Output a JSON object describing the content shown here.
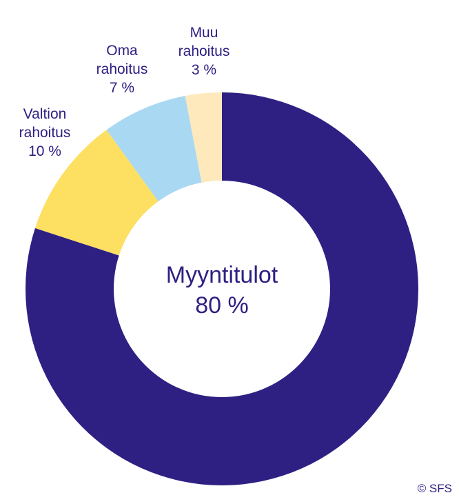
{
  "chart_data": {
    "type": "pie",
    "style": "donut",
    "slices": [
      {
        "label_lines": [
          "Myyntitulot",
          "80 %"
        ],
        "value": 80,
        "color": "#2e2083"
      },
      {
        "label_lines": [
          "Valtion",
          "rahoitus",
          "10 %"
        ],
        "value": 10,
        "color": "#fddf62"
      },
      {
        "label_lines": [
          "Oma",
          "rahoitus",
          "7 %"
        ],
        "value": 7,
        "color": "#a9d8f3"
      },
      {
        "label_lines": [
          "Muu",
          "rahoitus",
          "3 %"
        ],
        "value": 3,
        "color": "#fde9bb"
      }
    ],
    "title": "",
    "legend": "none"
  },
  "copyright": "© SFS"
}
